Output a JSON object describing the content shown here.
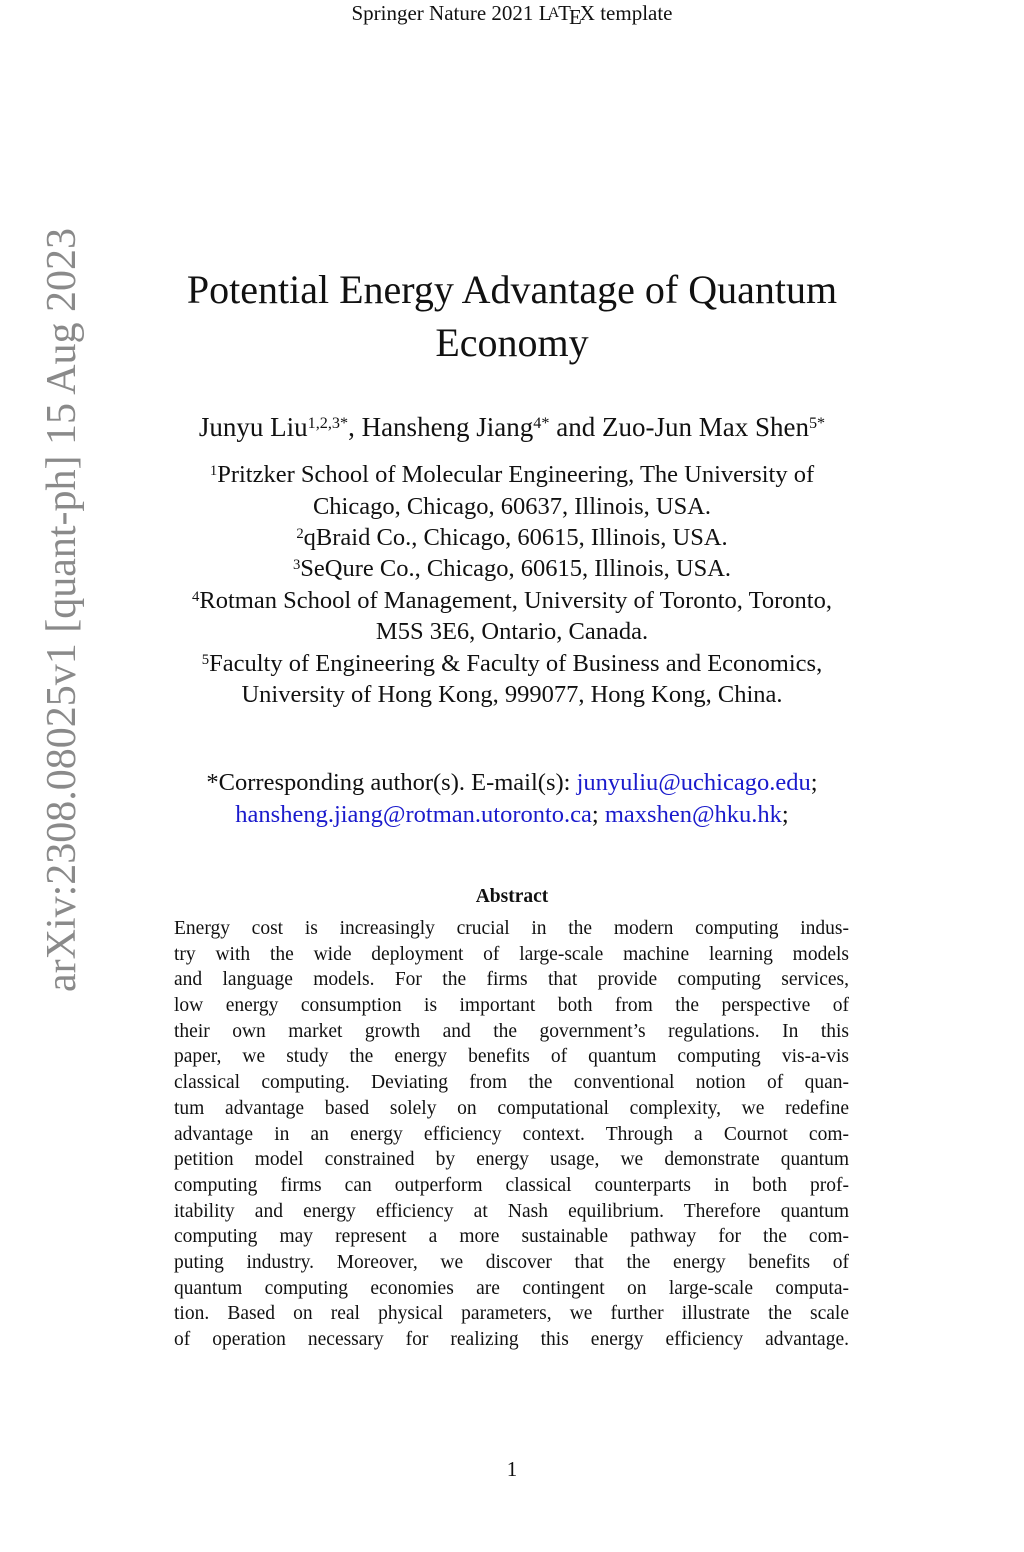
{
  "header": {
    "text_before": "Springer Nature 2021 ",
    "latex_logo": "LaTeX",
    "text_after": " template"
  },
  "arxiv_stamp": "arXiv:2308.08025v1  [quant-ph]  15 Aug 2023",
  "title": [
    "Potential Energy Advantage of Quantum",
    "Economy"
  ],
  "authors": [
    {
      "name": "Junyu Liu",
      "sup": "1,2,3*",
      "sep": ", "
    },
    {
      "name": "Hansheng Jiang",
      "sup": "4*",
      "sep": " and "
    },
    {
      "name": "Zuo-Jun Max Shen",
      "sup": "5*",
      "sep": ""
    }
  ],
  "affiliations": [
    {
      "sup": "1",
      "lines": [
        "Pritzker School of Molecular Engineering, The University of",
        "Chicago, Chicago, 60637, Illinois, USA."
      ]
    },
    {
      "sup": "2",
      "lines": [
        "qBraid Co., Chicago, 60615, Illinois, USA."
      ]
    },
    {
      "sup": "3",
      "lines": [
        "SeQure Co., Chicago, 60615, Illinois, USA."
      ]
    },
    {
      "sup": "4",
      "lines": [
        "Rotman School of Management, University of Toronto, Toronto,",
        "M5S 3E6, Ontario, Canada."
      ]
    },
    {
      "sup": "5",
      "lines": [
        "Faculty of Engineering & Faculty of Business and Economics,",
        "University of Hong Kong, 999077, Hong Kong, China."
      ]
    }
  ],
  "correspondence": {
    "label": "*Corresponding author(s). E-mail(s): ",
    "emails": [
      "junyuliu@uchicago.edu",
      "hansheng.jiang@rotman.utoronto.ca",
      "maxshen@hku.hk"
    ],
    "link_color": "#1a1acc"
  },
  "abstract": {
    "heading": "Abstract",
    "lines": [
      "Energy cost is increasingly crucial in the modern computing indus-",
      "try with the wide deployment of large-scale machine learning models",
      "and language models. For the firms that provide computing services,",
      "low energy consumption is important both from the perspective of",
      "their own market growth and the government’s regulations. In this",
      "paper, we study the energy benefits of quantum computing vis-a-vis",
      "classical computing. Deviating from the conventional notion of quan-",
      "tum advantage based solely on computational complexity, we redefine",
      "advantage in an energy efficiency context. Through a Cournot com-",
      "petition model constrained by energy usage, we demonstrate quantum",
      "computing firms can outperform classical counterparts in both prof-",
      "itability and energy efficiency at Nash equilibrium. Therefore quantum",
      "computing may represent a more sustainable pathway for the com-",
      "puting industry. Moreover, we discover that the energy benefits of",
      "quantum computing economies are contingent on large-scale computa-",
      "tion. Based on real physical parameters, we further illustrate the scale",
      "of operation necessary for realizing this energy efficiency advantage."
    ]
  },
  "page_number": "1"
}
